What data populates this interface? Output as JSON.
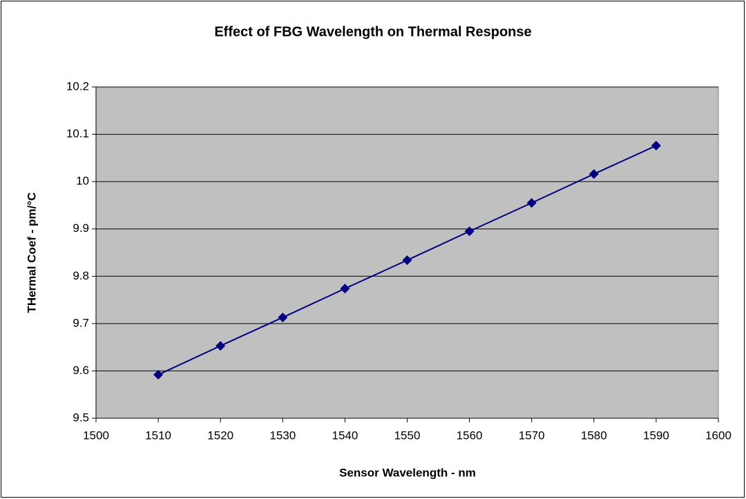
{
  "chart_data": {
    "type": "line",
    "title": "Effect of FBG Wavelength on Thermal Response",
    "x_label": "Sensor Wavelength - nm",
    "y_label": "THermal Coef - pm/°C",
    "x": [
      1510,
      1520,
      1530,
      1540,
      1550,
      1560,
      1570,
      1580,
      1590
    ],
    "values": [
      9.592,
      9.653,
      9.713,
      9.774,
      9.834,
      9.895,
      9.955,
      10.016,
      10.076
    ],
    "color": "#000080",
    "xlim": [
      1500,
      1600
    ],
    "xticks": [
      1500,
      1510,
      1520,
      1530,
      1540,
      1550,
      1560,
      1570,
      1580,
      1590,
      1600
    ],
    "ylim": [
      9.5,
      10.2
    ],
    "yticks": [
      9.5,
      9.6,
      9.7,
      9.8,
      9.9,
      10,
      10.1,
      10.2
    ],
    "grid": true
  }
}
